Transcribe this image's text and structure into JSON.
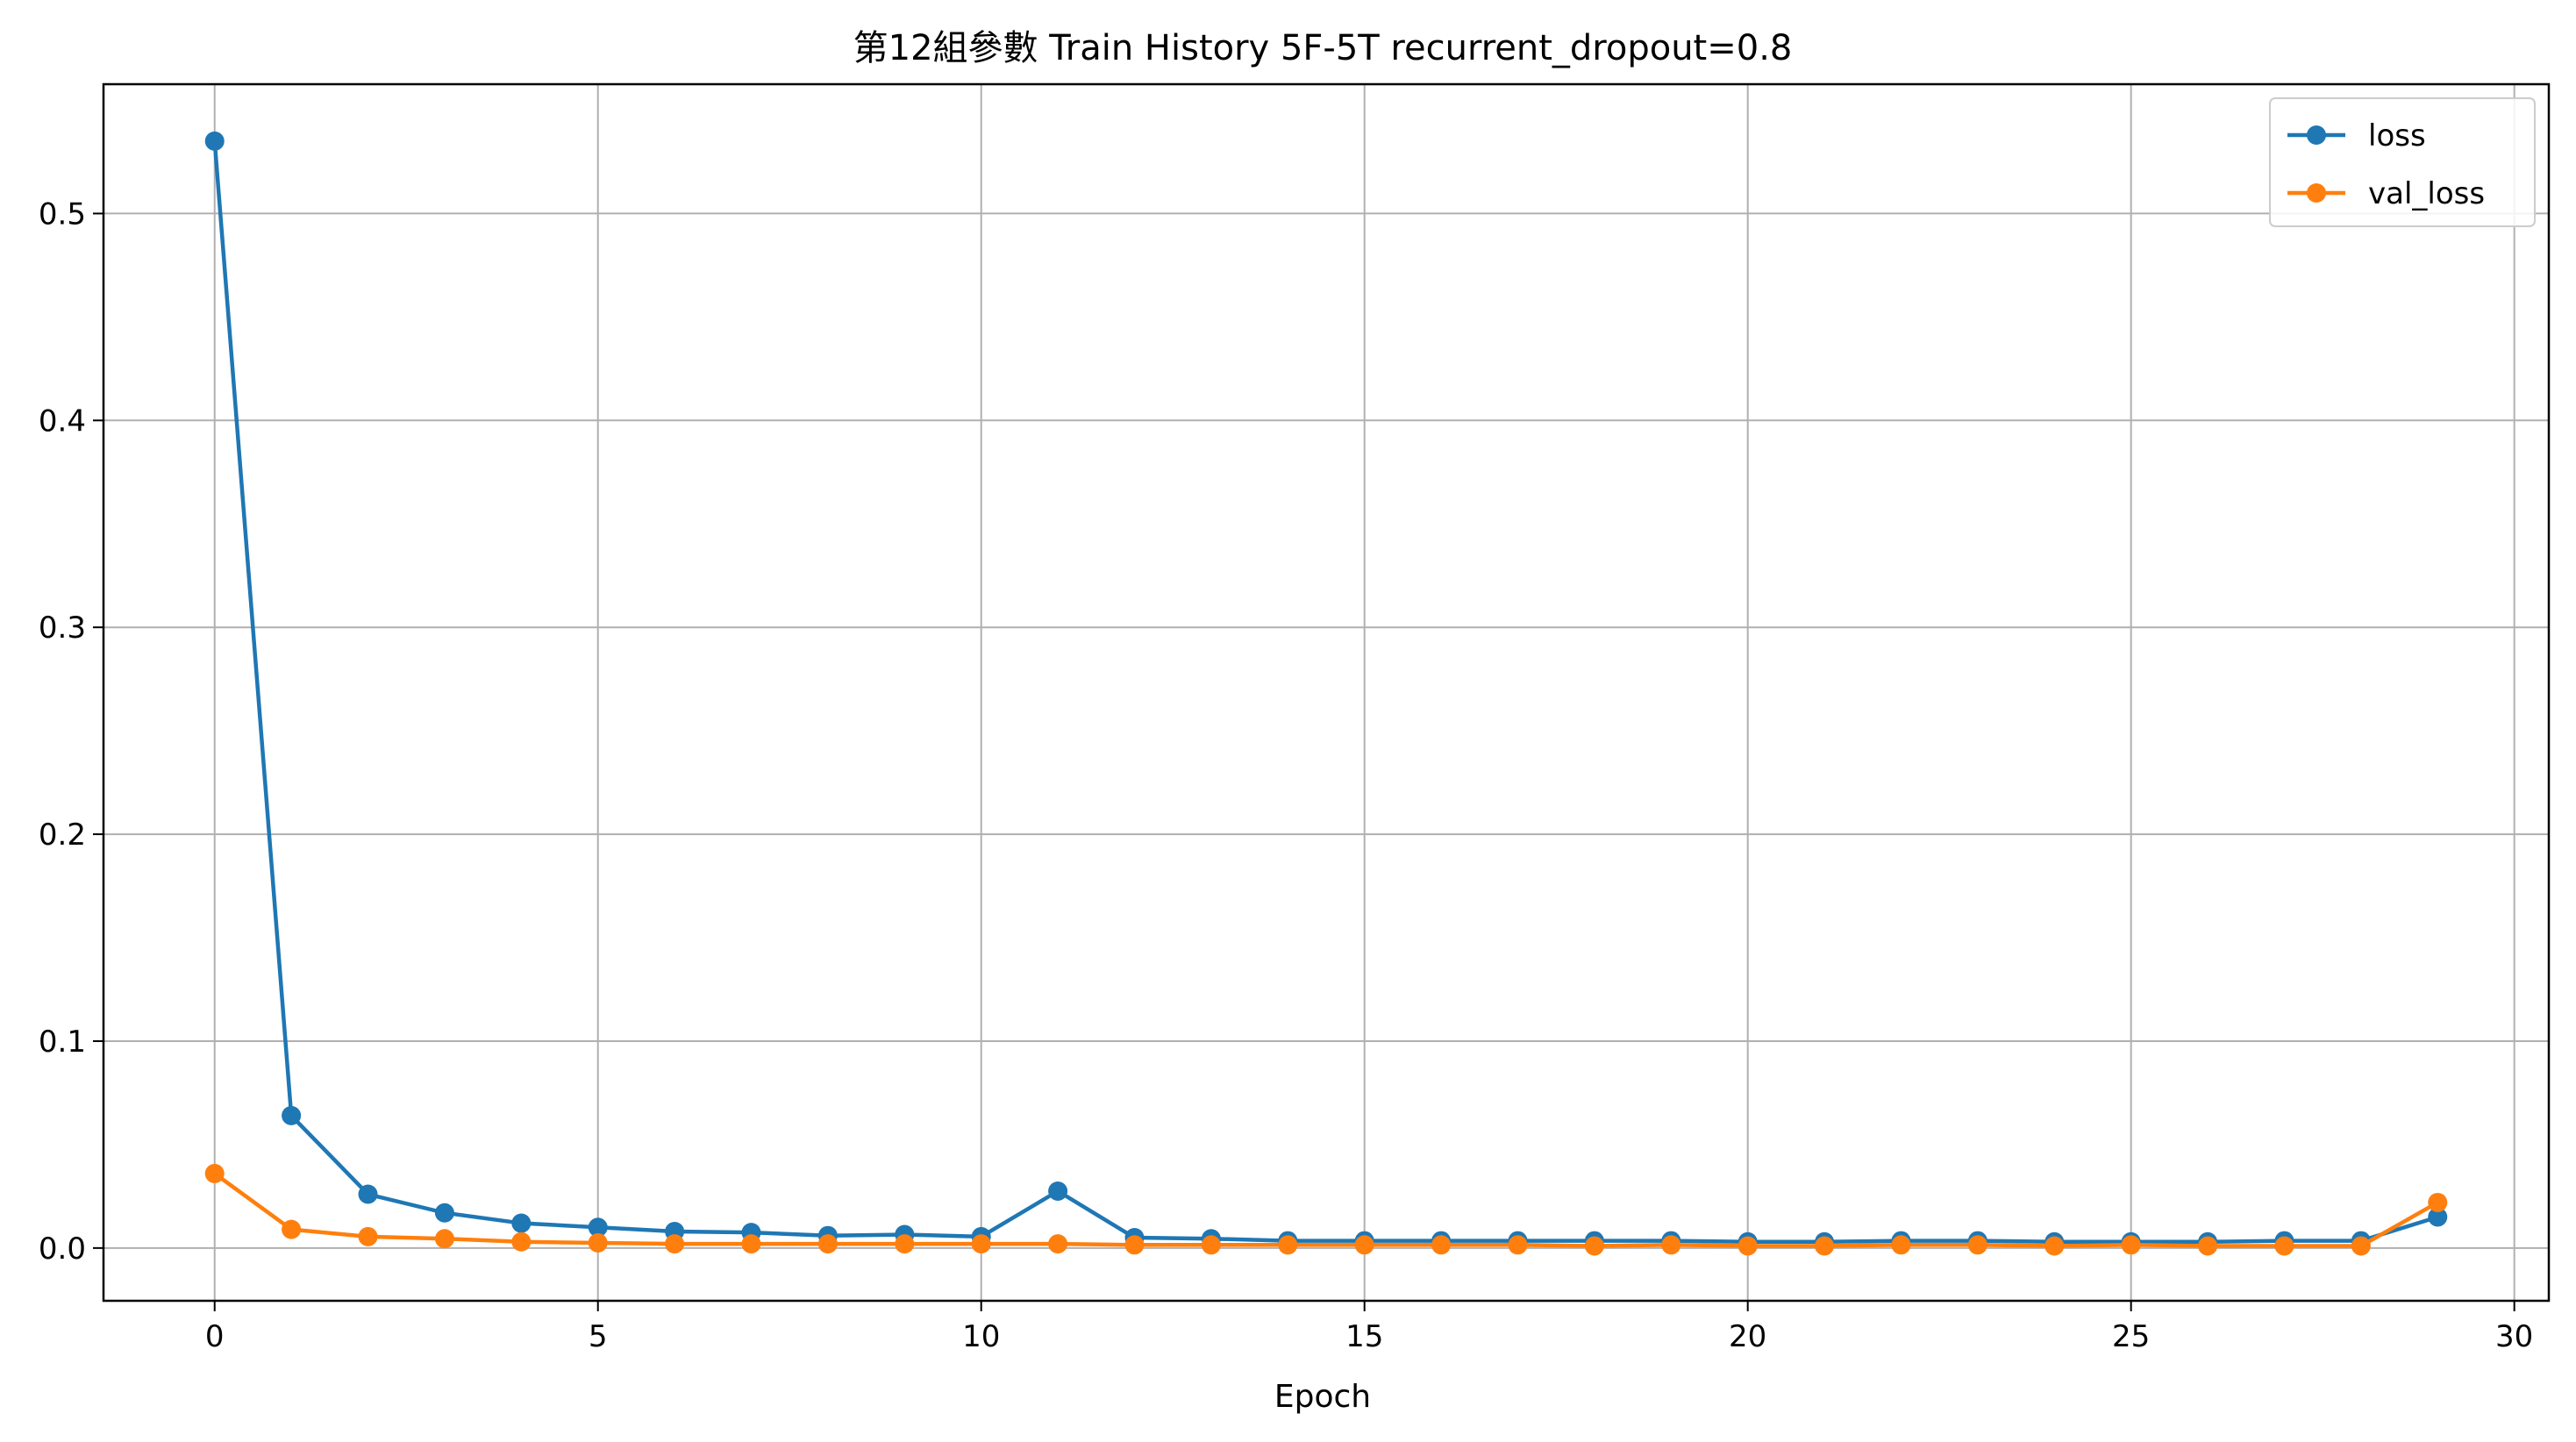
{
  "chart_data": {
    "type": "line",
    "title": "第12組參數 Train History 5F-5T recurrent_dropout=0.8",
    "xlabel": "Epoch",
    "ylabel": "",
    "xlim": [
      -1.45,
      30.45
    ],
    "ylim": [
      -0.0255,
      0.5625
    ],
    "x_ticks": [
      0,
      5,
      10,
      15,
      20,
      25,
      30
    ],
    "y_ticks": [
      0.0,
      0.1,
      0.2,
      0.3,
      0.4,
      0.5
    ],
    "x_tick_labels": [
      "0",
      "5",
      "10",
      "15",
      "20",
      "25",
      "30"
    ],
    "y_tick_labels": [
      "0.0",
      "0.1",
      "0.2",
      "0.3",
      "0.4",
      "0.5"
    ],
    "grid": true,
    "legend_position": "top-right",
    "markers": "circle",
    "x": [
      0,
      1,
      2,
      3,
      4,
      5,
      6,
      7,
      8,
      9,
      10,
      11,
      12,
      13,
      14,
      15,
      16,
      17,
      18,
      19,
      20,
      21,
      22,
      23,
      24,
      25,
      26,
      27,
      28,
      29
    ],
    "series": [
      {
        "name": "loss",
        "color": "#1f77b4",
        "values": [
          0.535,
          0.064,
          0.026,
          0.017,
          0.012,
          0.01,
          0.008,
          0.0075,
          0.006,
          0.0065,
          0.0055,
          0.0275,
          0.005,
          0.0045,
          0.0035,
          0.0035,
          0.0035,
          0.0035,
          0.0035,
          0.0035,
          0.003,
          0.003,
          0.0035,
          0.0035,
          0.003,
          0.003,
          0.003,
          0.0035,
          0.0035,
          0.015
        ]
      },
      {
        "name": "val_loss",
        "color": "#ff7f0e",
        "values": [
          0.036,
          0.009,
          0.0055,
          0.0045,
          0.003,
          0.0025,
          0.002,
          0.002,
          0.002,
          0.002,
          0.002,
          0.002,
          0.0015,
          0.0015,
          0.0015,
          0.0015,
          0.0015,
          0.0015,
          0.001,
          0.0015,
          0.001,
          0.001,
          0.0015,
          0.0015,
          0.001,
          0.0015,
          0.001,
          0.001,
          0.001,
          0.022
        ]
      }
    ]
  }
}
